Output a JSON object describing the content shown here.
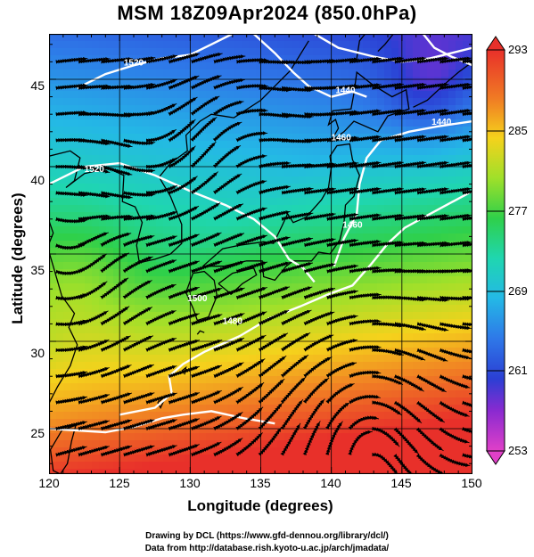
{
  "title": "MSM 18Z09Apr2024 (850.0hPa)",
  "xlabel": "Longitude (degrees)",
  "ylabel": "Latitude  (degrees)",
  "x_ticks": [
    "120",
    "125",
    "130",
    "135",
    "140",
    "145",
    "150"
  ],
  "y_ticks": [
    "25",
    "30",
    "35",
    "40",
    "45"
  ],
  "colorbar": {
    "labels": [
      "293",
      "285",
      "277",
      "269",
      "261",
      "253"
    ],
    "min": 253,
    "max": 293
  },
  "contour_labels": [
    "1520",
    "1520",
    "1460",
    "1440",
    "1440",
    "1460",
    "1480",
    "1500"
  ],
  "credits": {
    "line1": "Drawing by DCL (https://www.gfd-dennou.org/library/dcl/)",
    "line2": "Data from http://database.rish.kyoto-u.ac.jp/arch/jmadata/"
  },
  "chart_data": {
    "type": "heatmap",
    "title": "MSM 18Z09Apr2024 (850.0hPa)",
    "xlabel": "Longitude (degrees)",
    "ylabel": "Latitude  (degrees)",
    "xlim": [
      120,
      150
    ],
    "ylim": [
      22.4,
      47.6
    ],
    "colorbar_range": [
      253,
      293
    ],
    "colorbar_ticks": [
      293,
      285,
      277,
      269,
      261,
      253
    ],
    "contour_labels": [
      1520,
      1520,
      1460,
      1440,
      1440,
      1460,
      1480,
      1500
    ],
    "overlay": "streamlines",
    "grid": true
  }
}
